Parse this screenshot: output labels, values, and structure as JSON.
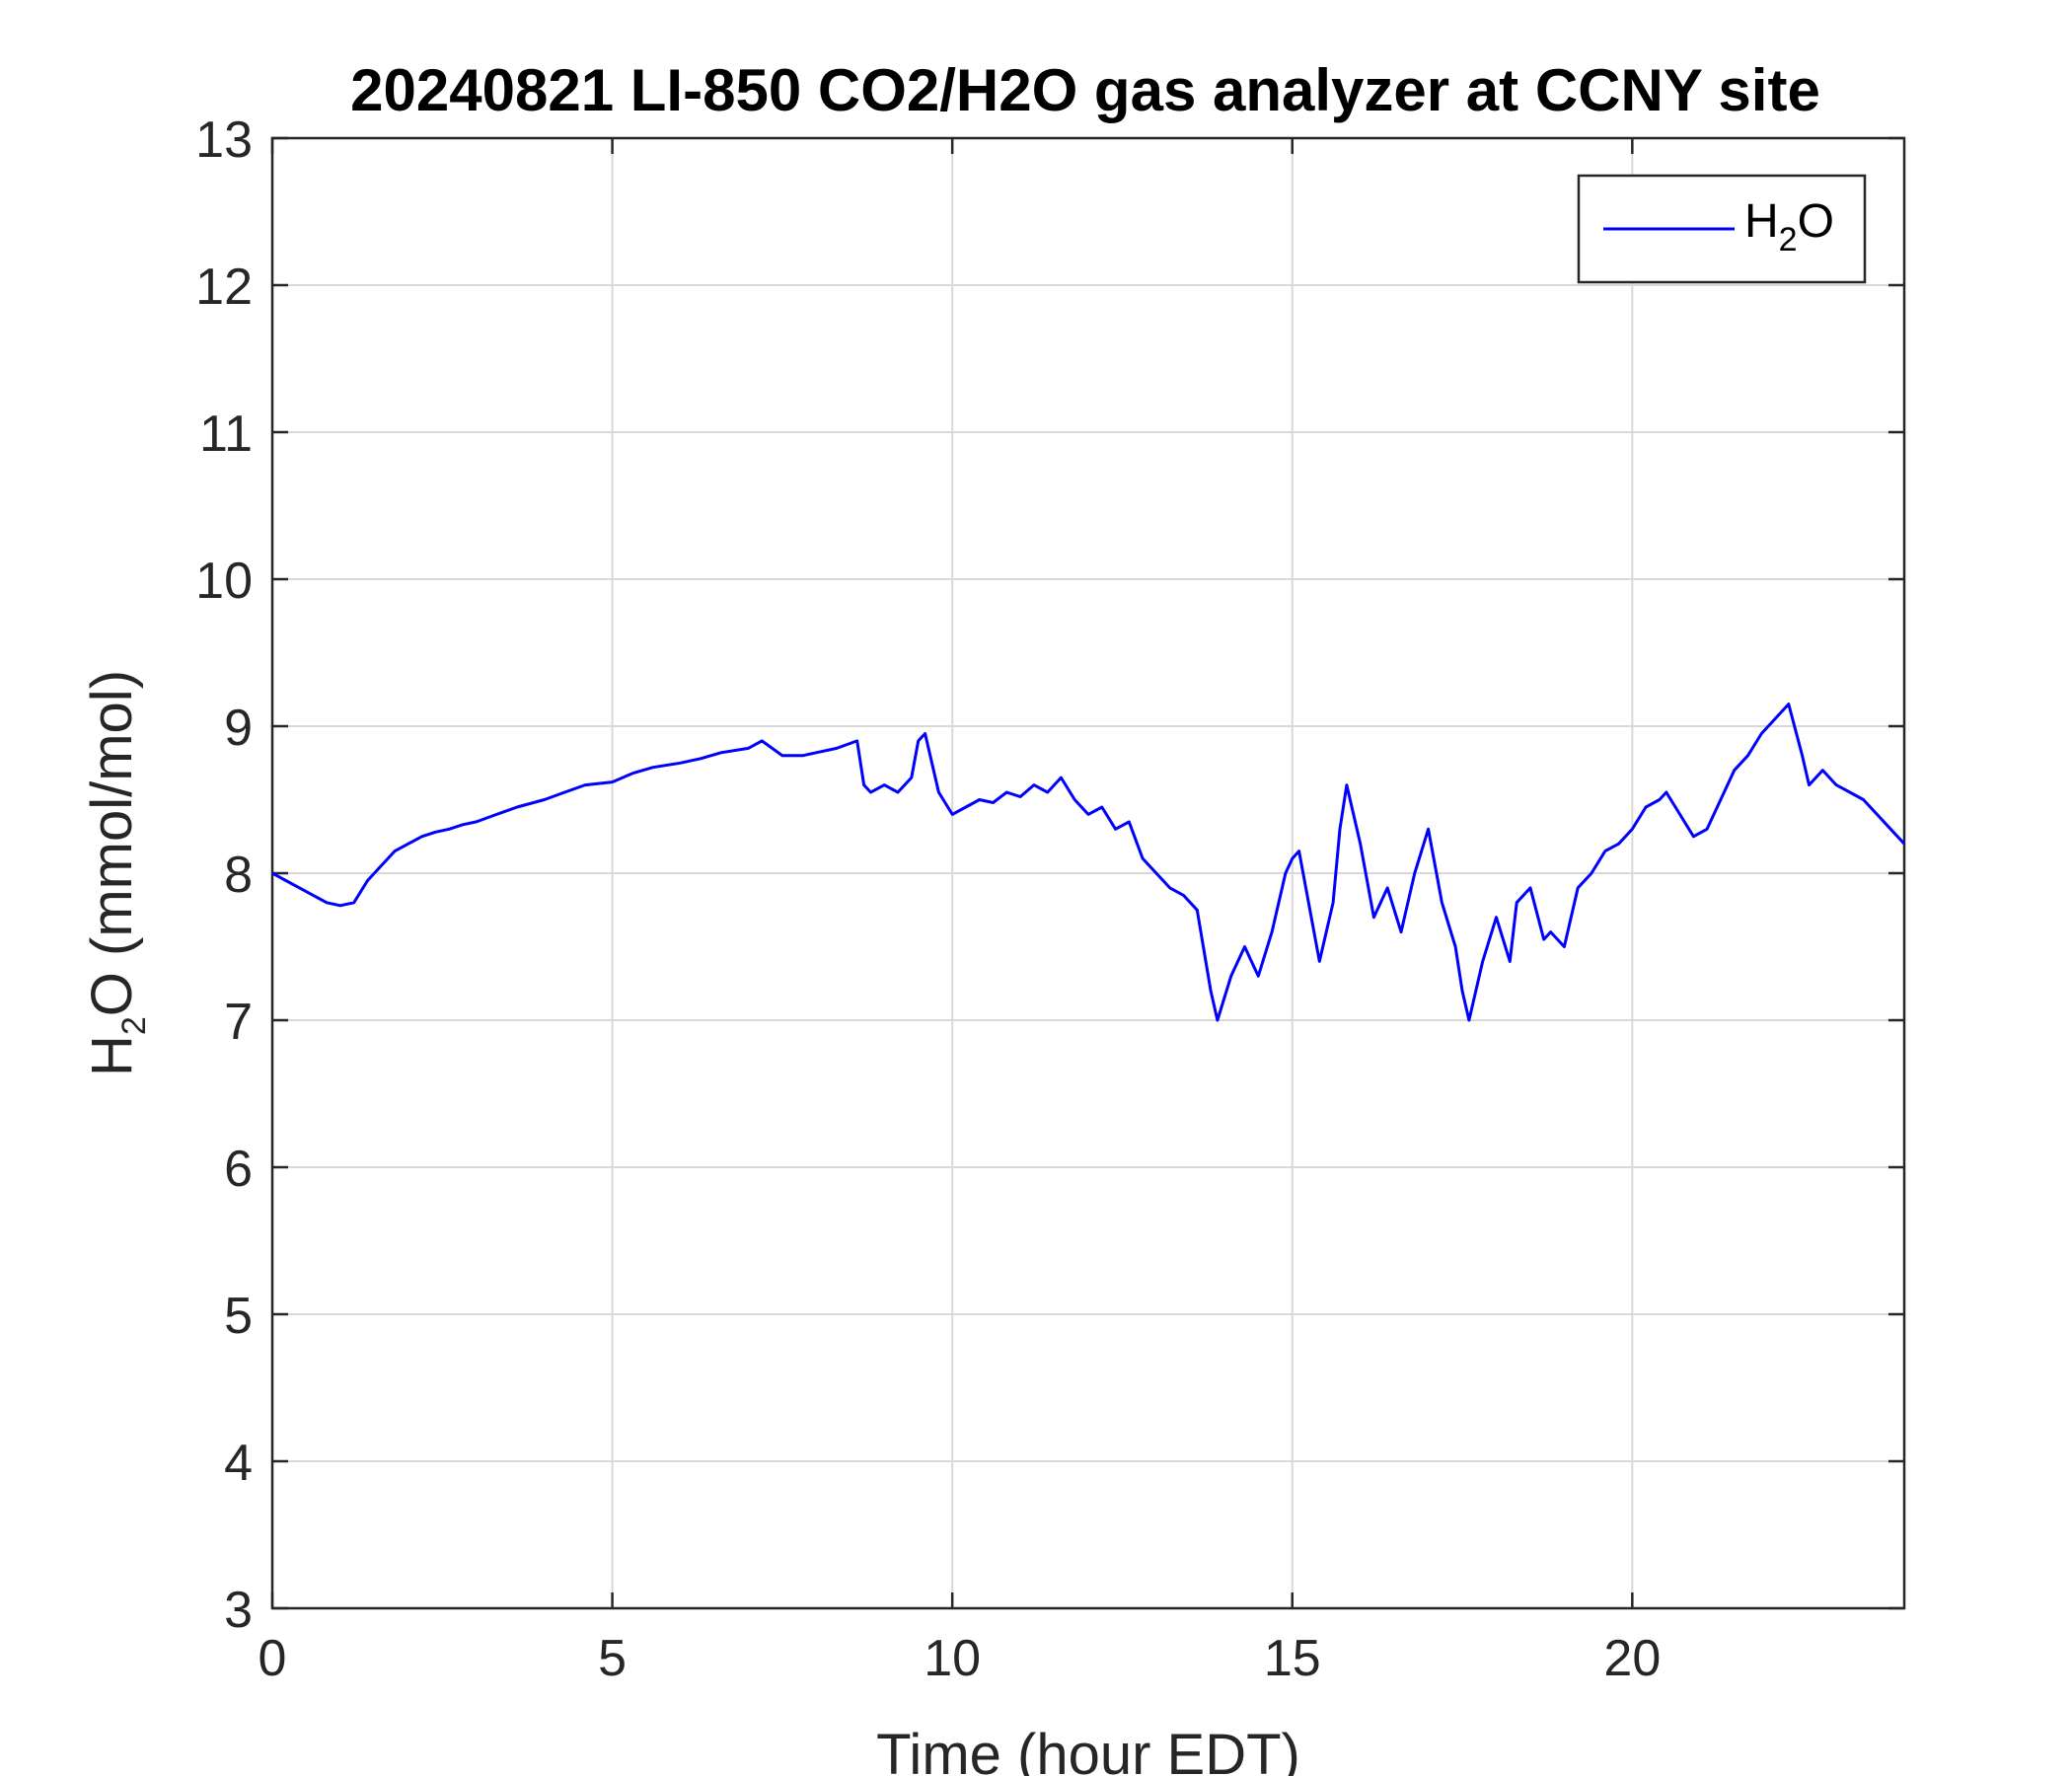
{
  "chart_data": {
    "type": "line",
    "title": "20240821 LI-850 CO2/H2O gas analyzer at CCNY site",
    "xlabel": "Time (hour EDT)",
    "ylabel": {
      "main": "H",
      "sub": "2",
      "rest": "O (mmol/mol)"
    },
    "xlim": [
      0,
      24
    ],
    "ylim": [
      3,
      13
    ],
    "xticks": [
      0,
      5,
      10,
      15,
      20
    ],
    "yticks": [
      3,
      4,
      5,
      6,
      7,
      8,
      9,
      10,
      11,
      12,
      13
    ],
    "grid": true,
    "legend": {
      "position": "top-right",
      "entries": [
        {
          "main": "H",
          "sub": "2",
          "rest": "O"
        }
      ]
    },
    "colors": {
      "series": "#0000ff",
      "grid": "#d9d9d9",
      "axis": "#262626"
    },
    "series": [
      {
        "name": "H2O",
        "x": [
          0,
          0.2,
          0.4,
          0.6,
          0.8,
          1.0,
          1.2,
          1.4,
          1.6,
          1.8,
          2.0,
          2.2,
          2.4,
          2.6,
          2.8,
          3.0,
          3.3,
          3.6,
          4.0,
          4.3,
          4.6,
          5.0,
          5.3,
          5.6,
          6.0,
          6.3,
          6.6,
          7.0,
          7.2,
          7.5,
          7.8,
          8.0,
          8.3,
          8.6,
          8.7,
          8.8,
          9.0,
          9.2,
          9.4,
          9.5,
          9.6,
          9.8,
          10.0,
          10.2,
          10.4,
          10.6,
          10.8,
          11.0,
          11.2,
          11.4,
          11.6,
          11.8,
          12.0,
          12.2,
          12.4,
          12.6,
          12.8,
          13.0,
          13.2,
          13.4,
          13.6,
          13.8,
          13.9,
          14.1,
          14.3,
          14.5,
          14.7,
          14.9,
          15.0,
          15.1,
          15.2,
          15.4,
          15.6,
          15.7,
          15.8,
          16.0,
          16.2,
          16.4,
          16.6,
          16.8,
          17.0,
          17.2,
          17.4,
          17.5,
          17.6,
          17.8,
          18.0,
          18.2,
          18.3,
          18.5,
          18.7,
          18.8,
          19.0,
          19.2,
          19.4,
          19.6,
          19.8,
          20.0,
          20.2,
          20.4,
          20.5,
          20.7,
          20.9,
          21.1,
          21.3,
          21.5,
          21.7,
          21.9,
          22.1,
          22.2,
          22.3,
          22.5,
          22.6,
          22.8,
          23.0,
          23.2,
          23.4,
          23.6,
          23.8,
          24.0
        ],
        "values": [
          8.0,
          7.95,
          7.9,
          7.85,
          7.8,
          7.78,
          7.8,
          7.95,
          8.05,
          8.15,
          8.2,
          8.25,
          8.28,
          8.3,
          8.33,
          8.35,
          8.4,
          8.45,
          8.5,
          8.55,
          8.6,
          8.62,
          8.68,
          8.72,
          8.75,
          8.78,
          8.82,
          8.85,
          8.9,
          8.8,
          8.8,
          8.82,
          8.85,
          8.9,
          8.6,
          8.55,
          8.6,
          8.55,
          8.65,
          8.9,
          8.95,
          8.55,
          8.4,
          8.45,
          8.5,
          8.48,
          8.55,
          8.52,
          8.6,
          8.55,
          8.65,
          8.5,
          8.4,
          8.45,
          8.3,
          8.35,
          8.1,
          8.0,
          7.9,
          7.85,
          7.75,
          7.2,
          7.0,
          7.3,
          7.5,
          7.3,
          7.6,
          8.0,
          8.1,
          8.15,
          7.9,
          7.4,
          7.8,
          8.3,
          8.6,
          8.2,
          7.7,
          7.9,
          7.6,
          8.0,
          8.3,
          7.8,
          7.5,
          7.2,
          7.0,
          7.4,
          7.7,
          7.4,
          7.8,
          7.9,
          7.55,
          7.6,
          7.5,
          7.9,
          8.0,
          8.15,
          8.2,
          8.3,
          8.45,
          8.5,
          8.55,
          8.4,
          8.25,
          8.3,
          8.5,
          8.7,
          8.8,
          8.95,
          9.05,
          9.1,
          9.15,
          8.8,
          8.6,
          8.7,
          8.6,
          8.55,
          8.5,
          8.4,
          8.3,
          8.2
        ]
      }
    ]
  }
}
